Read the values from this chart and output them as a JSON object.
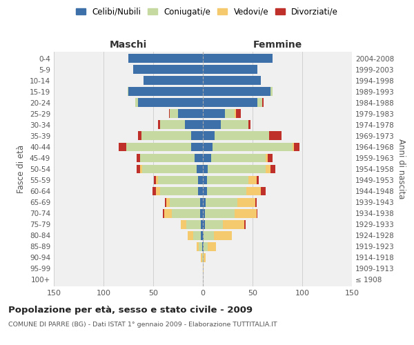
{
  "age_groups": [
    "100+",
    "95-99",
    "90-94",
    "85-89",
    "80-84",
    "75-79",
    "70-74",
    "65-69",
    "60-64",
    "55-59",
    "50-54",
    "45-49",
    "40-44",
    "35-39",
    "30-34",
    "25-29",
    "20-24",
    "15-19",
    "10-14",
    "5-9",
    "0-4"
  ],
  "birth_years": [
    "≤ 1908",
    "1909-1913",
    "1914-1918",
    "1919-1923",
    "1924-1928",
    "1929-1933",
    "1934-1938",
    "1939-1943",
    "1944-1948",
    "1949-1953",
    "1954-1958",
    "1959-1963",
    "1964-1968",
    "1969-1973",
    "1974-1978",
    "1979-1983",
    "1984-1988",
    "1989-1993",
    "1994-1998",
    "1999-2003",
    "2004-2008"
  ],
  "colors": {
    "celibi": "#3d6fa8",
    "coniugati": "#c5d9a0",
    "vedovi": "#f5c96e",
    "divorziati": "#c0302a"
  },
  "males": {
    "celibi": [
      0,
      0,
      0,
      1,
      2,
      2,
      3,
      3,
      5,
      5,
      6,
      8,
      12,
      12,
      18,
      25,
      65,
      75,
      60,
      70,
      75
    ],
    "coniugati": [
      0,
      0,
      1,
      3,
      8,
      15,
      28,
      30,
      38,
      40,
      55,
      55,
      65,
      50,
      25,
      8,
      3,
      1,
      0,
      0,
      0
    ],
    "vedovi": [
      0,
      0,
      1,
      2,
      5,
      5,
      8,
      4,
      4,
      2,
      2,
      0,
      0,
      0,
      0,
      0,
      0,
      0,
      0,
      0,
      0
    ],
    "divorziati": [
      0,
      0,
      0,
      0,
      0,
      0,
      1,
      1,
      4,
      2,
      4,
      4,
      8,
      3,
      2,
      1,
      0,
      0,
      0,
      0,
      0
    ]
  },
  "females": {
    "celibi": [
      0,
      0,
      0,
      1,
      1,
      2,
      2,
      3,
      4,
      4,
      5,
      8,
      10,
      12,
      18,
      22,
      55,
      68,
      58,
      55,
      70
    ],
    "coniugati": [
      0,
      0,
      1,
      4,
      10,
      18,
      30,
      32,
      40,
      42,
      58,
      55,
      80,
      55,
      28,
      10,
      5,
      2,
      0,
      0,
      0
    ],
    "vedovi": [
      0,
      1,
      2,
      8,
      18,
      22,
      22,
      18,
      14,
      8,
      5,
      2,
      2,
      0,
      0,
      1,
      0,
      0,
      0,
      0,
      0
    ],
    "divorziati": [
      0,
      0,
      0,
      0,
      0,
      1,
      1,
      1,
      5,
      2,
      5,
      5,
      5,
      12,
      2,
      5,
      1,
      0,
      0,
      0,
      0
    ]
  },
  "title_main": "Popolazione per età, sesso e stato civile - 2009",
  "title_sub": "COMUNE DI PARRE (BG) - Dati ISTAT 1° gennaio 2009 - Elaborazione TUTTITALIA.IT",
  "xlabel_left": "Maschi",
  "xlabel_right": "Femmine",
  "ylabel_left": "Fasce di età",
  "ylabel_right": "Anni di nascita",
  "xlim": 150,
  "legend_labels": [
    "Celibi/Nubili",
    "Coniugati/e",
    "Vedovi/e",
    "Divorziati/e"
  ],
  "bg_color": "#ffffff",
  "plot_bg": "#f0f0f0",
  "grid_color": "#cccccc"
}
